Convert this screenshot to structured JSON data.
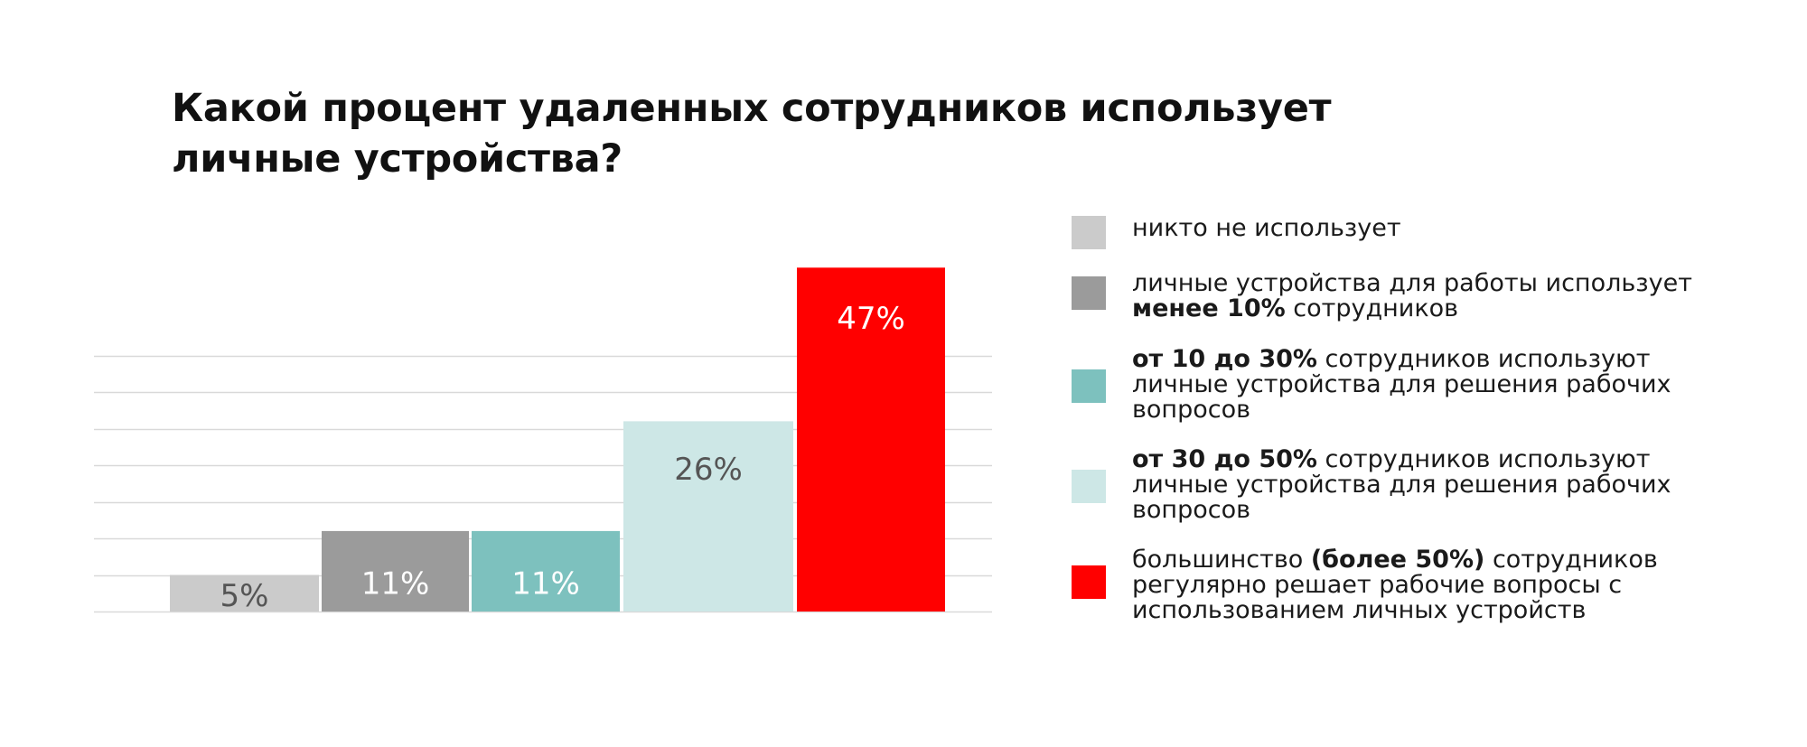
{
  "title": {
    "line1": "Какой процент удаленных сотрудников использует",
    "line2": "личные устройства?"
  },
  "chart_data": {
    "type": "bar",
    "categories": [
      "никто не использует",
      "менее 10% сотрудников",
      "от 10 до 30% сотрудников",
      "от 30 до 50% сотрудников",
      "большинство (более 50%) сотрудников"
    ],
    "values": [
      5,
      11,
      11,
      26,
      47
    ],
    "value_labels": [
      "5%",
      "11%",
      "11%",
      "26%",
      "47%"
    ],
    "colors": [
      "#cbcbcb",
      "#9b9b9b",
      "#7dc1be",
      "#cde7e6",
      "#ff0000"
    ],
    "label_colors": [
      "#555555",
      "#ffffff",
      "#ffffff",
      "#555555",
      "#ffffff"
    ],
    "ylim": [
      0,
      50
    ],
    "grid": true,
    "legend_position": "right"
  },
  "legend": [
    {
      "color": "#cbcbcb",
      "lines": [
        [
          {
            "t": "никто не использует",
            "b": false
          }
        ]
      ]
    },
    {
      "color": "#9b9b9b",
      "lines": [
        [
          {
            "t": "личные устройства для работы использует",
            "b": false
          }
        ],
        [
          {
            "t": "менее 10%",
            "b": true
          },
          {
            "t": " сотрудников",
            "b": false
          }
        ]
      ]
    },
    {
      "color": "#7dc1be",
      "lines": [
        [
          {
            "t": "от 10 до 30%",
            "b": true
          },
          {
            "t": " сотрудников используют",
            "b": false
          }
        ],
        [
          {
            "t": "личные устройства для решения рабочих",
            "b": false
          }
        ],
        [
          {
            "t": "вопросов",
            "b": false
          }
        ]
      ]
    },
    {
      "color": "#cde7e6",
      "lines": [
        [
          {
            "t": "от 30 до 50%",
            "b": true
          },
          {
            "t": " сотрудников используют",
            "b": false
          }
        ],
        [
          {
            "t": "личные устройства для решения рабочих",
            "b": false
          }
        ],
        [
          {
            "t": "вопросов",
            "b": false
          }
        ]
      ]
    },
    {
      "color": "#ff0000",
      "lines": [
        [
          {
            "t": "большинство ",
            "b": false
          },
          {
            "t": "(более 50%)",
            "b": true
          },
          {
            "t": " сотрудников",
            "b": false
          }
        ],
        [
          {
            "t": "регулярно решает рабочие вопросы с",
            "b": false
          }
        ],
        [
          {
            "t": "использованием личных устройств",
            "b": false
          }
        ]
      ]
    }
  ]
}
